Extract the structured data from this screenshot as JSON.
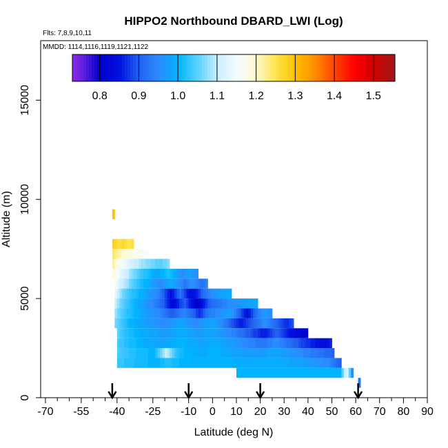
{
  "chart_data": {
    "type": "heatmap",
    "title": "HIPPO2 Northbound DBARD_LWI (Log)",
    "flights_note": "Flts: 7,8,9,10,11",
    "dates_note": "MMDD: 1114,1116,1119,1121,1122",
    "xlabel": "Latitude (deg N)",
    "ylabel": "Altitude (m)",
    "xlim": [
      -72,
      90
    ],
    "ylim": [
      0,
      18000
    ],
    "x_ticks": [
      -70,
      -55,
      -40,
      -25,
      -10,
      0,
      10,
      20,
      30,
      40,
      50,
      60,
      70,
      80,
      90
    ],
    "x_tick_labels": [
      "-70",
      "-55",
      "-40",
      "-25",
      "-10",
      "0",
      "10",
      "20",
      "30",
      "40",
      "50",
      "60",
      "70",
      "80",
      "90"
    ],
    "x_minor_ticks": [
      -65,
      -60,
      -50,
      -45,
      -35,
      -30,
      -20,
      -15,
      -5,
      5,
      15,
      25,
      35,
      45,
      55,
      65,
      75,
      85
    ],
    "y_ticks": [
      0,
      5000,
      10000,
      15000
    ],
    "y_tick_labels": [
      "0",
      "5000",
      "10000",
      "15000"
    ],
    "colorbar": {
      "range": [
        0.73,
        1.555
      ],
      "ticks": [
        0.8,
        0.9,
        1.0,
        1.1,
        1.2,
        1.3,
        1.4,
        1.5
      ],
      "tick_labels": [
        "0.8",
        "0.9",
        "1.0",
        "1.1",
        "1.2",
        "1.3",
        "1.4",
        "1.5"
      ],
      "stops": [
        {
          "v": 0.73,
          "c": "#8a2be2"
        },
        {
          "v": 0.76,
          "c": "#5a1fe0"
        },
        {
          "v": 0.8,
          "c": "#0000c8"
        },
        {
          "v": 0.85,
          "c": "#0010e0"
        },
        {
          "v": 0.9,
          "c": "#2060f0"
        },
        {
          "v": 0.95,
          "c": "#2a8cff"
        },
        {
          "v": 1.0,
          "c": "#00b4ff"
        },
        {
          "v": 1.05,
          "c": "#5ad0ff"
        },
        {
          "v": 1.1,
          "c": "#c8eeff"
        },
        {
          "v": 1.15,
          "c": "#f5fbff"
        },
        {
          "v": 1.2,
          "c": "#fffad0"
        },
        {
          "v": 1.25,
          "c": "#ffe44a"
        },
        {
          "v": 1.3,
          "c": "#ffc000"
        },
        {
          "v": 1.35,
          "c": "#ff8c00"
        },
        {
          "v": 1.4,
          "c": "#ff4500"
        },
        {
          "v": 1.45,
          "c": "#ff0000"
        },
        {
          "v": 1.5,
          "c": "#d00000"
        },
        {
          "v": 1.555,
          "c": "#a01818"
        }
      ]
    },
    "profile_markers_lat": [
      -42,
      -10,
      20,
      61
    ],
    "bins": [
      {
        "alt": 9250,
        "lat": [
          -42,
          -41
        ],
        "values": [
          1.3
        ]
      },
      {
        "alt": 7750,
        "lat": [
          -42,
          -33
        ],
        "values": [
          1.28,
          1.27,
          1.26,
          1.26,
          1.27,
          1.26,
          1.25,
          1.25,
          1.26
        ]
      },
      {
        "alt": 7250,
        "lat": [
          -42,
          -27
        ],
        "values": [
          1.24,
          1.23,
          1.22,
          1.21,
          1.2,
          1.19,
          1.19,
          1.18,
          1.18,
          1.17,
          1.17,
          1.16,
          1.16,
          1.15,
          1.15
        ]
      },
      {
        "alt": 6750,
        "lat": [
          -42,
          -18
        ],
        "values": [
          1.22,
          1.2,
          1.18,
          1.16,
          1.15,
          1.14,
          1.13,
          1.12,
          1.11,
          1.1,
          1.1,
          1.09,
          1.08,
          1.08,
          1.07,
          1.07,
          1.06,
          1.06,
          1.05,
          1.05,
          1.05,
          1.06,
          1.06,
          1.07
        ]
      },
      {
        "alt": 6250,
        "lat": [
          -42,
          -6
        ],
        "values": [
          1.2,
          1.17,
          1.15,
          1.13,
          1.12,
          1.11,
          1.1,
          1.08,
          1.07,
          1.06,
          1.05,
          1.04,
          1.03,
          1.02,
          1.02,
          1.01,
          1.0,
          0.99,
          0.98,
          0.99,
          1.0,
          1.0,
          1.01,
          1.02,
          1.01,
          1.0,
          0.99,
          0.97,
          0.96,
          0.95,
          0.96,
          0.97,
          0.98,
          0.97,
          0.96,
          0.95
        ]
      },
      {
        "alt": 5750,
        "lat": [
          -41,
          -2
        ],
        "values": [
          1.16,
          1.13,
          1.11,
          1.1,
          1.09,
          1.08,
          1.06,
          1.05,
          1.04,
          1.03,
          1.02,
          1.01,
          1.0,
          1.0,
          0.99,
          0.98,
          0.97,
          0.96,
          0.95,
          0.95,
          0.96,
          0.97,
          0.98,
          0.99,
          0.98,
          0.97,
          0.96,
          0.95,
          0.94,
          0.93,
          0.94,
          0.95,
          0.96,
          0.95,
          0.94,
          0.93,
          0.92,
          0.93,
          0.94
        ]
      },
      {
        "alt": 5250,
        "lat": [
          -41,
          8
        ],
        "values": [
          1.13,
          1.1,
          1.08,
          1.06,
          1.05,
          1.04,
          1.03,
          1.02,
          1.02,
          1.01,
          1.0,
          1.0,
          0.99,
          0.98,
          0.97,
          0.96,
          0.96,
          0.95,
          0.94,
          0.92,
          0.9,
          0.88,
          0.86,
          0.85,
          0.86,
          0.88,
          0.9,
          0.92,
          0.9,
          0.88,
          0.86,
          0.85,
          0.84,
          0.85,
          0.86,
          0.88,
          0.9,
          0.92,
          0.93,
          0.94,
          0.95,
          0.96,
          0.96,
          0.97,
          0.97,
          0.98,
          0.98,
          0.99,
          0.99
        ]
      },
      {
        "alt": 4750,
        "lat": [
          -41,
          19
        ],
        "values": [
          1.1,
          1.08,
          1.06,
          1.05,
          1.04,
          1.03,
          1.02,
          1.01,
          1.0,
          0.99,
          0.98,
          0.98,
          0.97,
          0.96,
          0.95,
          0.95,
          0.94,
          0.93,
          0.92,
          0.91,
          0.9,
          0.88,
          0.86,
          0.84,
          0.83,
          0.84,
          0.86,
          0.88,
          0.89,
          0.9,
          0.88,
          0.86,
          0.84,
          0.82,
          0.8,
          0.82,
          0.84,
          0.86,
          0.88,
          0.9,
          0.91,
          0.92,
          0.92,
          0.93,
          0.93,
          0.94,
          0.94,
          0.95,
          0.95,
          0.95,
          0.96,
          0.96,
          0.96,
          0.97,
          0.97,
          0.97,
          0.98,
          0.98,
          0.98,
          0.99
        ]
      },
      {
        "alt": 4250,
        "lat": [
          -41,
          25
        ],
        "values": [
          1.08,
          1.06,
          1.05,
          1.04,
          1.03,
          1.02,
          1.02,
          1.01,
          1.0,
          1.0,
          0.99,
          0.98,
          0.98,
          0.97,
          0.97,
          0.96,
          0.96,
          0.95,
          0.95,
          0.94,
          0.93,
          0.92,
          0.91,
          0.9,
          0.9,
          0.91,
          0.92,
          0.93,
          0.94,
          0.94,
          0.93,
          0.92,
          0.91,
          0.9,
          0.88,
          0.87,
          0.88,
          0.9,
          0.92,
          0.93,
          0.94,
          0.94,
          0.95,
          0.95,
          0.96,
          0.96,
          0.97,
          0.97,
          0.98,
          0.96,
          0.94,
          0.92,
          0.9,
          0.88,
          0.86,
          0.85,
          0.86,
          0.88,
          0.9,
          0.92,
          0.94,
          0.95,
          0.96,
          0.97,
          0.96,
          0.95
        ]
      },
      {
        "alt": 3750,
        "lat": [
          -41,
          34
        ],
        "values": [
          1.06,
          1.05,
          1.04,
          1.03,
          1.02,
          1.01,
          1.0,
          1.0,
          0.99,
          0.99,
          0.98,
          0.98,
          0.98,
          0.97,
          0.97,
          0.97,
          0.96,
          0.96,
          0.96,
          0.95,
          0.95,
          0.95,
          0.96,
          0.96,
          0.97,
          0.97,
          0.98,
          0.98,
          0.98,
          0.97,
          0.97,
          0.96,
          0.96,
          0.95,
          0.95,
          0.96,
          0.96,
          0.97,
          0.97,
          0.98,
          0.98,
          0.98,
          0.97,
          0.96,
          0.95,
          0.94,
          0.93,
          0.92,
          0.9,
          0.89,
          0.88,
          0.87,
          0.86,
          0.86,
          0.87,
          0.88,
          0.89,
          0.9,
          0.91,
          0.92,
          0.93,
          0.94,
          0.95,
          0.95,
          0.94,
          0.93,
          0.92,
          0.91,
          0.9,
          0.89,
          0.88,
          0.87,
          0.87,
          0.88,
          0.89
        ]
      },
      {
        "alt": 3250,
        "lat": [
          -40,
          40
        ],
        "values": [
          1.05,
          1.04,
          1.03,
          1.02,
          1.02,
          1.01,
          1.01,
          1.0,
          1.0,
          1.0,
          0.99,
          0.99,
          0.99,
          0.98,
          0.98,
          0.98,
          0.98,
          0.97,
          0.97,
          0.97,
          0.97,
          0.97,
          0.98,
          0.98,
          0.98,
          0.99,
          0.99,
          0.99,
          0.99,
          0.98,
          0.98,
          0.98,
          0.98,
          0.97,
          0.97,
          0.97,
          0.97,
          0.98,
          0.98,
          0.98,
          0.98,
          0.98,
          0.97,
          0.97,
          0.96,
          0.96,
          0.95,
          0.95,
          0.94,
          0.94,
          0.93,
          0.92,
          0.92,
          0.91,
          0.9,
          0.9,
          0.89,
          0.88,
          0.88,
          0.87,
          0.86,
          0.86,
          0.86,
          0.87,
          0.88,
          0.89,
          0.9,
          0.9,
          0.89,
          0.88,
          0.87,
          0.86,
          0.85,
          0.84,
          0.84,
          0.83,
          0.83,
          0.82,
          0.82,
          0.82
        ]
      },
      {
        "alt": 2750,
        "lat": [
          -40,
          50
        ],
        "values": [
          1.04,
          1.03,
          1.03,
          1.02,
          1.02,
          1.01,
          1.01,
          1.01,
          1.0,
          1.0,
          1.0,
          0.99,
          0.99,
          0.99,
          0.99,
          0.99,
          0.98,
          0.98,
          0.98,
          0.98,
          0.98,
          0.99,
          0.99,
          0.99,
          0.99,
          1.0,
          1.0,
          1.0,
          1.0,
          0.99,
          0.99,
          0.99,
          0.99,
          0.99,
          0.98,
          0.98,
          0.98,
          0.98,
          0.99,
          0.99,
          0.99,
          0.99,
          0.99,
          0.98,
          0.98,
          0.98,
          0.97,
          0.97,
          0.97,
          0.96,
          0.96,
          0.96,
          0.95,
          0.95,
          0.95,
          0.94,
          0.94,
          0.94,
          0.93,
          0.93,
          0.93,
          0.93,
          0.93,
          0.94,
          0.94,
          0.95,
          0.95,
          0.95,
          0.94,
          0.94,
          0.93,
          0.92,
          0.92,
          0.91,
          0.9,
          0.9,
          0.89,
          0.88,
          0.88,
          0.87,
          0.87,
          0.86,
          0.86,
          0.85,
          0.85,
          0.84,
          0.84,
          0.84,
          0.85,
          0.86
        ]
      },
      {
        "alt": 2250,
        "lat": [
          -40,
          51
        ],
        "values": [
          1.04,
          1.04,
          1.03,
          1.03,
          1.03,
          1.02,
          1.02,
          1.02,
          1.01,
          1.01,
          1.01,
          1.01,
          1.01,
          1.0,
          1.0,
          1.0,
          1.02,
          1.04,
          1.06,
          1.08,
          1.1,
          1.09,
          1.07,
          1.05,
          1.03,
          1.02,
          1.01,
          1.01,
          1.0,
          1.0,
          1.0,
          1.0,
          0.99,
          0.99,
          0.99,
          0.99,
          0.99,
          0.99,
          1.0,
          1.0,
          1.0,
          1.0,
          1.0,
          0.99,
          0.99,
          0.99,
          0.99,
          0.98,
          0.98,
          0.98,
          0.98,
          0.98,
          0.98,
          0.97,
          0.97,
          0.97,
          0.97,
          0.97,
          0.97,
          0.97,
          0.97,
          0.97,
          0.97,
          0.98,
          0.98,
          0.98,
          0.98,
          0.98,
          0.98,
          0.97,
          0.97,
          0.97,
          0.96,
          0.96,
          0.96,
          0.95,
          0.95,
          0.95,
          0.94,
          0.94,
          0.94,
          0.93,
          0.93,
          0.93,
          0.92,
          0.92,
          0.92,
          0.91,
          0.91,
          0.91,
          0.9
        ]
      },
      {
        "alt": 1750,
        "lat": [
          -40,
          54
        ],
        "values": [
          1.03,
          1.03,
          1.03,
          1.02,
          1.02,
          1.02,
          1.02,
          1.01,
          1.01,
          1.01,
          1.01,
          1.01,
          1.01,
          1.0,
          1.0,
          1.0,
          1.0,
          1.0,
          1.01,
          1.01,
          1.02,
          1.02,
          1.02,
          1.01,
          1.01,
          1.01,
          1.0,
          1.0,
          1.0,
          1.0,
          1.0,
          1.0,
          1.0,
          1.0,
          1.0,
          1.0,
          1.0,
          1.0,
          1.0,
          1.0,
          1.0,
          1.0,
          1.0,
          1.0,
          1.0,
          1.0,
          1.0,
          1.0,
          1.0,
          0.99,
          0.99,
          0.99,
          0.99,
          0.99,
          0.99,
          0.99,
          0.99,
          0.99,
          0.99,
          0.99,
          0.99,
          0.99,
          0.99,
          0.99,
          0.99,
          0.99,
          0.99,
          0.99,
          0.99,
          0.99,
          0.99,
          0.99,
          0.98,
          0.98,
          0.98,
          0.98,
          0.98,
          0.98,
          0.97,
          0.97,
          0.97,
          0.97,
          0.96,
          0.96,
          0.96,
          0.96,
          0.95,
          0.95,
          0.95,
          0.94,
          0.93,
          0.92,
          0.91,
          0.9
        ]
      },
      {
        "alt": 1250,
        "lat": [
          10,
          59
        ],
        "values": [
          1.0,
          1.0,
          1.0,
          1.0,
          1.0,
          1.0,
          1.0,
          1.0,
          1.0,
          1.0,
          1.0,
          1.0,
          1.0,
          1.0,
          1.0,
          1.0,
          1.0,
          1.0,
          1.0,
          1.0,
          1.0,
          1.0,
          1.0,
          1.0,
          1.0,
          1.0,
          1.0,
          1.0,
          1.0,
          1.0,
          1.0,
          1.0,
          1.0,
          1.0,
          1.0,
          1.0,
          1.0,
          1.0,
          1.0,
          1.0,
          1.0,
          1.0,
          1.0,
          1.0,
          1.05,
          1.1,
          1.12,
          1.05,
          0.95
        ]
      },
      {
        "alt": 750,
        "lat": [
          61,
          62
        ],
        "values": [
          0.92
        ]
      }
    ]
  }
}
